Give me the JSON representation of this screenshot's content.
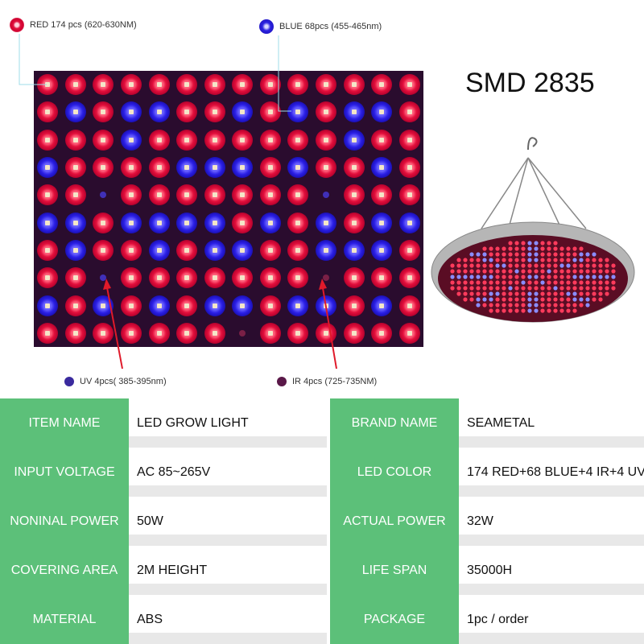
{
  "legend": {
    "red": "RED 174 pcs  (620-630NM)",
    "blue": "BLUE 68pcs (455-465nm)",
    "uv": "UV 4pcs( 385-395nm)",
    "ir": "IR 4pcs (725-735NM)"
  },
  "product_label": "SMD 2835",
  "colors": {
    "red_led": "#e30f3c",
    "blue_led": "#2b1fe6",
    "label_green": "#5cc079",
    "panel_bg": "#2a0c2e"
  },
  "led_layout": [
    "RRRRRRRRRRRRRR",
    "RBRBBRRBRBRBBR",
    "RRRBRRRRRRRBRR",
    "BRRRRBBBRBRRBR",
    "RRURRRRRRRURRR",
    "BBRBBBBRBRBRBB",
    "RBRRBRBBRRBBBR",
    "RRURRRRRRRIRRR",
    "BRBRBRBBRBBRBR",
    "RRRRRRRIRRRRRR"
  ],
  "specs": [
    {
      "left_label": "ITEM NAME",
      "left_value": "LED GROW LIGHT",
      "right_label": "BRAND NAME",
      "right_value": "SEAMETAL"
    },
    {
      "left_label": "INPUT VOLTAGE",
      "left_value": "AC 85~265V",
      "right_label": "LED COLOR",
      "right_value": "174 RED+68 BLUE+4 IR+4 UV"
    },
    {
      "left_label": "NONINAL POWER",
      "left_value": "50W",
      "right_label": "ACTUAL POWER",
      "right_value": "32W"
    },
    {
      "left_label": "COVERING AREA",
      "left_value": "2M HEIGHT",
      "right_label": "LIFE SPAN",
      "right_value": "35000H"
    },
    {
      "left_label": "MATERIAL",
      "left_value": "ABS",
      "right_label": "PACKAGE",
      "right_value": "1pc / order"
    }
  ]
}
